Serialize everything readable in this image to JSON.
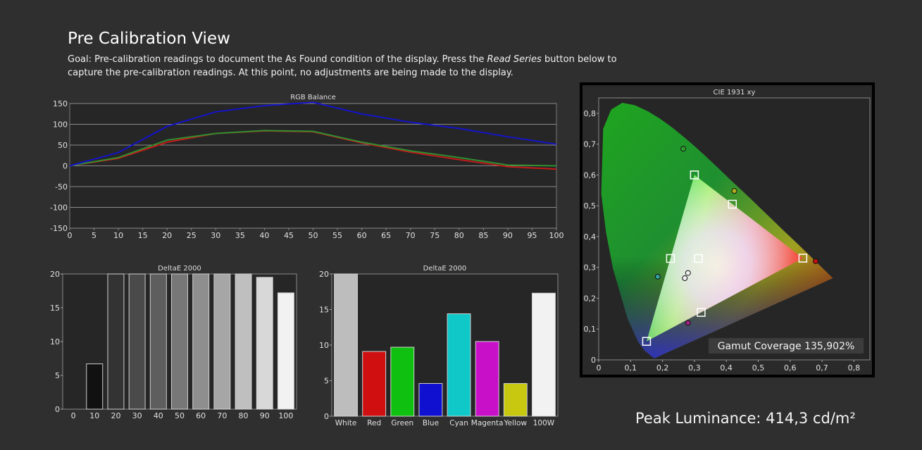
{
  "page": {
    "title": "Pre Calibration View",
    "goal_prefix": "Goal: Pre-calibration readings to document the As Found condition of the display. Press the ",
    "goal_button": "Read Series",
    "goal_suffix": " button below to capture the pre-calibration readings. At this point, no adjustments are being made to the display.",
    "peak_luminance": "Peak Luminance: 414,3 cd/m²"
  },
  "colors": {
    "background": "#2f2f2f",
    "plot_bg": "#222222",
    "red": "#c01010",
    "green": "#2f9a2f",
    "blue": "#1010c8"
  },
  "chart_data": [
    {
      "id": "rgb",
      "type": "line",
      "title": "RGB Balance",
      "x": [
        0,
        10,
        20,
        30,
        40,
        50,
        60,
        70,
        80,
        90,
        100
      ],
      "ylim": [
        -150,
        150
      ],
      "xticks": [
        0,
        5,
        10,
        15,
        20,
        25,
        30,
        35,
        40,
        45,
        50,
        55,
        60,
        65,
        70,
        75,
        80,
        85,
        90,
        95,
        100
      ],
      "yticks": [
        150,
        100,
        50,
        0,
        -50,
        -100,
        -150
      ],
      "grid": true,
      "series": [
        {
          "color": "#c41a1a",
          "values": [
            0,
            18,
            57,
            78,
            84,
            82,
            55,
            33,
            15,
            -2,
            -8
          ]
        },
        {
          "color": "#2f8f2f",
          "values": [
            0,
            20,
            62,
            78,
            85,
            83,
            57,
            36,
            20,
            2,
            0
          ]
        },
        {
          "color": "#1414cc",
          "values": [
            0,
            32,
            95,
            130,
            145,
            153,
            125,
            105,
            90,
            70,
            52
          ]
        }
      ]
    },
    {
      "id": "gray",
      "type": "bar",
      "title": "DeltaE 2000",
      "categories": [
        "0",
        "10",
        "20",
        "30",
        "40",
        "50",
        "60",
        "70",
        "80",
        "90",
        "100"
      ],
      "values": [
        0,
        6.7,
        20,
        20,
        20,
        20,
        20,
        20,
        20,
        19.5,
        17.2
      ],
      "fills": [
        "#000000",
        "#111111",
        "#333333",
        "#4a4a4a",
        "#5e5e5e",
        "#777777",
        "#8e8e8e",
        "#a6a6a6",
        "#bfbfbf",
        "#d8d8d8",
        "#f2f2f2"
      ],
      "ylim": [
        0,
        20
      ],
      "yticks": [
        0,
        5,
        10,
        15,
        20
      ]
    },
    {
      "id": "color",
      "type": "bar",
      "title": "DeltaE 2000",
      "categories": [
        "White",
        "Red",
        "Green",
        "Blue",
        "Cyan",
        "Magenta",
        "Yellow",
        "100W"
      ],
      "values": [
        20,
        9.1,
        9.7,
        4.6,
        14.4,
        10.5,
        4.6,
        17.3
      ],
      "fills": [
        "#bdbdbd",
        "#d01010",
        "#10c010",
        "#1010d0",
        "#10c8c8",
        "#c810c8",
        "#c8c810",
        "#f2f2f2"
      ],
      "ylim": [
        0,
        20
      ],
      "yticks": [
        0,
        5,
        10,
        15,
        20
      ]
    },
    {
      "id": "cie",
      "type": "scatter",
      "title": "CIE 1931 xy",
      "xlim": [
        0,
        0.85
      ],
      "ylim": [
        0,
        0.85
      ],
      "xticks": [
        "0",
        "0,1",
        "0,2",
        "0,3",
        "0,4",
        "0,5",
        "0,6",
        "0,7",
        "0,8"
      ],
      "yticks": [
        "0",
        "0,1",
        "0,2",
        "0,3",
        "0,4",
        "0,5",
        "0,6",
        "0,7",
        "0,8"
      ],
      "targets": [
        {
          "x": 0.64,
          "y": 0.33
        },
        {
          "x": 0.3,
          "y": 0.6
        },
        {
          "x": 0.15,
          "y": 0.06
        },
        {
          "x": 0.225,
          "y": 0.329
        },
        {
          "x": 0.321,
          "y": 0.154
        },
        {
          "x": 0.419,
          "y": 0.505
        },
        {
          "x": 0.3127,
          "y": 0.329
        }
      ],
      "measured": [
        {
          "x": 0.68,
          "y": 0.32,
          "color": "#c01010"
        },
        {
          "x": 0.265,
          "y": 0.685,
          "color": "#30a030"
        },
        {
          "x": 0.185,
          "y": 0.27,
          "color": "#30a0a0"
        },
        {
          "x": 0.28,
          "y": 0.12,
          "color": "#a02080"
        },
        {
          "x": 0.425,
          "y": 0.548,
          "color": "#b0b020"
        },
        {
          "x": 0.28,
          "y": 0.282,
          "color": "#f0f0f0"
        },
        {
          "x": 0.27,
          "y": 0.265,
          "color": "#f0f0f0"
        }
      ],
      "gamut_label": "Gamut Coverage 135,902%"
    }
  ]
}
